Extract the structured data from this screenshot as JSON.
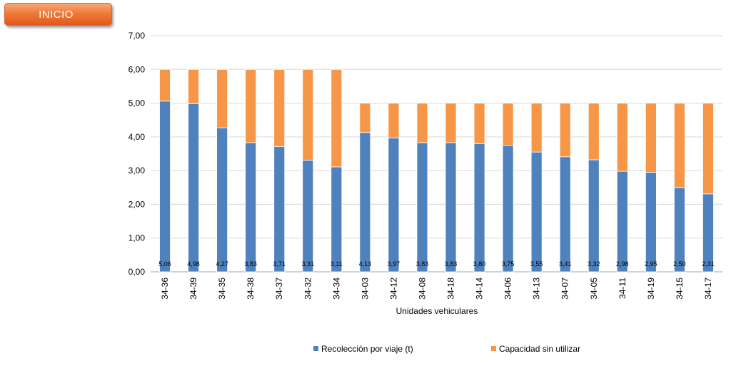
{
  "header": {
    "inicio_label": "INICIO"
  },
  "chart_data": {
    "type": "bar",
    "stacked": true,
    "categories": [
      "34-36",
      "34-39",
      "34-35",
      "34-38",
      "34-37",
      "34-32",
      "34-34",
      "34-03",
      "34-12",
      "34-08",
      "34-18",
      "34-14",
      "34-06",
      "34-13",
      "34-07",
      "34-05",
      "34-11",
      "34-19",
      "34-15",
      "34-17"
    ],
    "series": [
      {
        "name": "Recolección por viaje (t)",
        "color": "#4f81bd",
        "values": [
          5.06,
          4.98,
          4.27,
          3.83,
          3.71,
          3.31,
          3.11,
          4.13,
          3.97,
          3.83,
          3.83,
          3.8,
          3.75,
          3.55,
          3.41,
          3.32,
          2.98,
          2.95,
          2.5,
          2.31
        ]
      },
      {
        "name": "Capacidad sin utilizar",
        "color": "#f79646",
        "values": [
          0.94,
          1.02,
          1.73,
          2.17,
          2.29,
          2.69,
          2.89,
          0.87,
          1.03,
          1.17,
          1.17,
          1.2,
          1.25,
          1.45,
          1.59,
          1.68,
          2.02,
          2.05,
          2.5,
          2.69
        ]
      }
    ],
    "data_labels": [
      "5,06",
      "4,98",
      "4,27",
      "3,83",
      "3,71",
      "3,31",
      "3,11",
      "4,13",
      "3,97",
      "3,83",
      "3,83",
      "3,80",
      "3,75",
      "3,55",
      "3,41",
      "3,32",
      "2,98",
      "2,95",
      "2,50",
      "2,31"
    ],
    "y_ticks": [
      "0,00",
      "1,00",
      "2,00",
      "3,00",
      "4,00",
      "5,00",
      "6,00",
      "7,00"
    ],
    "ylim": [
      0,
      7
    ],
    "xlabel": "Unidades vehiculares",
    "ylabel": "",
    "title": "",
    "grid": true,
    "legend": "bottom"
  }
}
